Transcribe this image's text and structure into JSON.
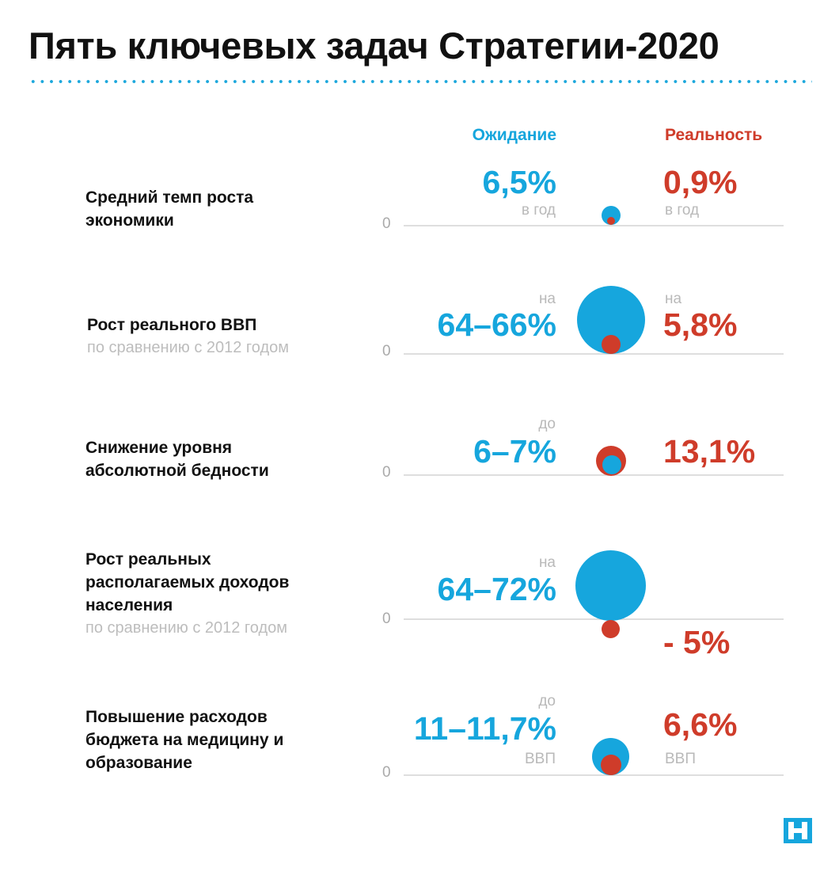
{
  "title": "Пять ключевых задач Стратегии-2020",
  "legend": {
    "expectation": "Ожидание",
    "reality": "Реальность"
  },
  "colors": {
    "expectation": "#16a6dd",
    "reality": "#cf3c2a",
    "dots": "#1aa7dc"
  },
  "logo_icon": "newspaper-logo",
  "chart_data": {
    "type": "bubble",
    "series": [
      {
        "name": "Ожидание",
        "values": [
          6.5,
          65,
          6.5,
          68,
          11.35
        ]
      },
      {
        "name": "Реальность",
        "values": [
          0.9,
          5.8,
          13.1,
          -5,
          6.6
        ]
      }
    ],
    "rows": [
      {
        "label": "Средний темп роста экономики",
        "sublabel": "",
        "zero": "0",
        "expectation": {
          "prefix": "",
          "value": "6,5%",
          "suffix": "в год"
        },
        "reality": {
          "prefix": "",
          "value": "0,9%",
          "suffix": "в год"
        }
      },
      {
        "label": "Рост реального ВВП",
        "sublabel": "по сравнению с 2012 годом",
        "zero": "0",
        "expectation": {
          "prefix": "на",
          "value": "64–66%",
          "suffix": ""
        },
        "reality": {
          "prefix": "на",
          "value": "5,8%",
          "suffix": ""
        }
      },
      {
        "label": "Снижение уровня абсолютной бедности",
        "sublabel": "",
        "zero": "0",
        "expectation": {
          "prefix": "до",
          "value": "6–7%",
          "suffix": ""
        },
        "reality": {
          "prefix": "",
          "value": "13,1%",
          "suffix": ""
        }
      },
      {
        "label": "Рост реальных располагаемых доходов населения",
        "sublabel": "по сравнению с 2012 годом",
        "zero": "0",
        "expectation": {
          "prefix": "на",
          "value": "64–72%",
          "suffix": ""
        },
        "reality": {
          "prefix": "",
          "value": "- 5%",
          "suffix": ""
        }
      },
      {
        "label": "Повышение расходов бюджета на медицину и образование",
        "sublabel": "",
        "zero": "0",
        "expectation": {
          "prefix": "до",
          "value": "11–11,7%",
          "suffix": "ВВП"
        },
        "reality": {
          "prefix": "",
          "value": "6,6%",
          "suffix": "ВВП"
        }
      }
    ]
  }
}
